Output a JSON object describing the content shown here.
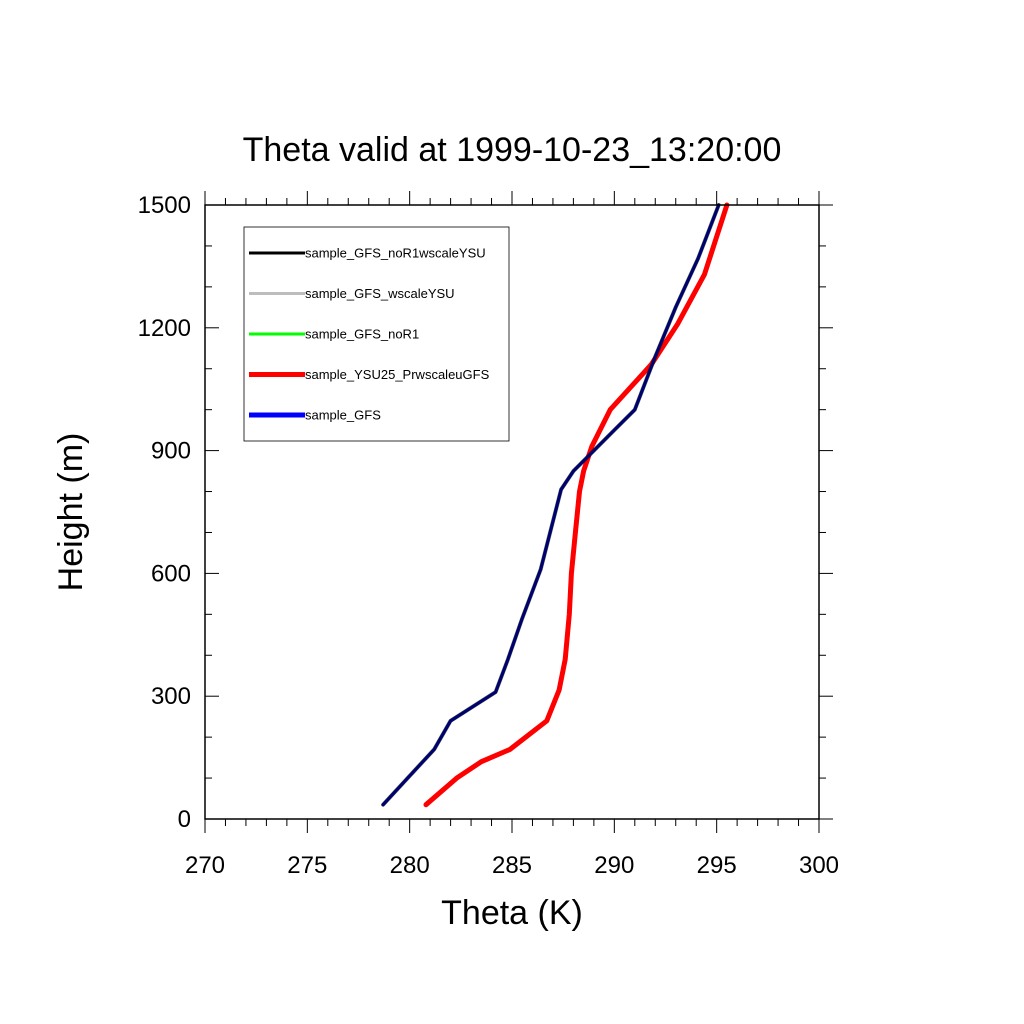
{
  "chart_data": {
    "type": "line",
    "title": "Theta valid at 1999-10-23_13:20:00",
    "xlabel": "Theta (K)",
    "ylabel": "Height (m)",
    "xlim": [
      270,
      300
    ],
    "ylim": [
      0,
      1500
    ],
    "xticks": [
      "270",
      "275",
      "280",
      "285",
      "290",
      "295",
      "300"
    ],
    "yticks": [
      "0",
      "300",
      "600",
      "900",
      "1200",
      "1500"
    ],
    "legend_position": "top-left",
    "grid": false,
    "series": [
      {
        "name": "sample_GFS_noR1wscaleYSU",
        "color": "#000000",
        "x": [
          278.7,
          279.9,
          281.2,
          282.0,
          284.2,
          284.8,
          285.5,
          286.4,
          287.4,
          288.0,
          289.0,
          290.0,
          291.0,
          292.0,
          293.0,
          294.1,
          295.1
        ],
        "y": [
          35,
          100,
          170,
          240,
          310,
          390,
          490,
          610,
          805,
          850,
          900,
          950,
          1000,
          1130,
          1250,
          1370,
          1500
        ]
      },
      {
        "name": "sample_GFS_wscaleYSU",
        "color": "#bdbdbd",
        "x": [
          278.7,
          279.9,
          281.2,
          282.0,
          284.2,
          284.8,
          285.5,
          286.4,
          287.4,
          288.0,
          289.0,
          290.0,
          291.0,
          292.0,
          293.0,
          294.1,
          295.1
        ],
        "y": [
          35,
          100,
          170,
          240,
          310,
          390,
          490,
          610,
          805,
          850,
          900,
          950,
          1000,
          1130,
          1250,
          1370,
          1500
        ]
      },
      {
        "name": "sample_GFS_noR1",
        "color": "#00ff00",
        "x": [
          278.7,
          279.9,
          281.2,
          282.0,
          284.2,
          284.8,
          285.5,
          286.4,
          287.4,
          288.0,
          289.0,
          290.0,
          291.0,
          292.0,
          293.0,
          294.1,
          295.1
        ],
        "y": [
          35,
          100,
          170,
          240,
          310,
          390,
          490,
          610,
          805,
          850,
          900,
          950,
          1000,
          1130,
          1250,
          1370,
          1500
        ]
      },
      {
        "name": "sample_YSU25_PrwscaleuGFS",
        "color": "#ff0000",
        "x": [
          280.8,
          282.3,
          283.5,
          284.9,
          286.7,
          287.3,
          287.6,
          287.8,
          287.9,
          288.1,
          288.3,
          288.5,
          288.9,
          289.8,
          291.8,
          293.1,
          294.4,
          295.5
        ],
        "y": [
          35,
          100,
          140,
          170,
          240,
          315,
          390,
          500,
          600,
          700,
          800,
          850,
          910,
          1000,
          1110,
          1210,
          1330,
          1500
        ]
      },
      {
        "name": "sample_GFS",
        "color": "#0000ff",
        "x": [
          278.7,
          279.9,
          281.2,
          282.0,
          284.2,
          284.8,
          285.5,
          286.4,
          287.4,
          288.0,
          289.0,
          290.0,
          291.0,
          292.0,
          293.0,
          294.1,
          295.1
        ],
        "y": [
          35,
          100,
          170,
          240,
          310,
          390,
          490,
          610,
          805,
          850,
          900,
          950,
          1000,
          1130,
          1250,
          1370,
          1500
        ]
      }
    ]
  }
}
